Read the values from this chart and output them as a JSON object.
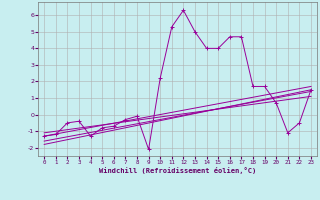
{
  "xlabel": "Windchill (Refroidissement éolien,°C)",
  "background_color": "#c8eef0",
  "line_color": "#990099",
  "grid_color": "#b0b0b0",
  "xlim": [
    -0.5,
    23.5
  ],
  "ylim": [
    -2.5,
    6.8
  ],
  "xticks": [
    0,
    1,
    2,
    3,
    4,
    5,
    6,
    7,
    8,
    9,
    10,
    11,
    12,
    13,
    14,
    15,
    16,
    17,
    18,
    19,
    20,
    21,
    22,
    23
  ],
  "yticks": [
    -2,
    -1,
    0,
    1,
    2,
    3,
    4,
    5,
    6
  ],
  "series": [
    {
      "x": [
        0,
        1,
        2,
        3,
        4,
        5,
        6,
        7,
        8,
        9,
        10,
        11,
        12,
        13,
        14,
        15,
        16,
        17,
        18,
        19,
        20,
        21,
        22,
        23
      ],
      "y": [
        -1.3,
        -1.2,
        -0.5,
        -0.4,
        -1.3,
        -0.8,
        -0.7,
        -0.3,
        -0.1,
        -2.1,
        2.2,
        5.3,
        6.3,
        5.0,
        4.0,
        4.0,
        4.7,
        4.7,
        1.7,
        1.7,
        0.7,
        -1.1,
        -0.5,
        1.5
      ],
      "has_markers": true
    },
    {
      "x": [
        0,
        23
      ],
      "y": [
        -1.8,
        1.5
      ],
      "has_markers": false
    },
    {
      "x": [
        0,
        23
      ],
      "y": [
        -1.6,
        1.4
      ],
      "has_markers": false
    },
    {
      "x": [
        0,
        23
      ],
      "y": [
        -1.3,
        1.7
      ],
      "has_markers": false
    },
    {
      "x": [
        0,
        23
      ],
      "y": [
        -1.1,
        1.1
      ],
      "has_markers": false
    }
  ]
}
